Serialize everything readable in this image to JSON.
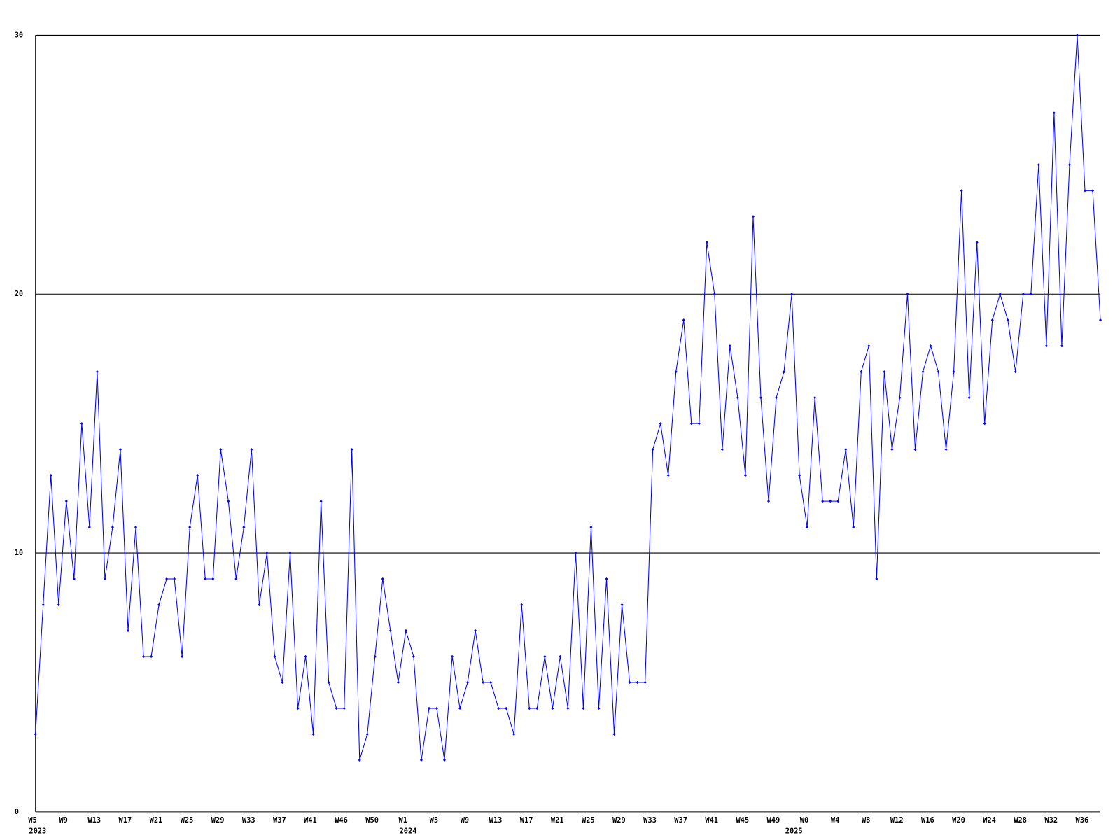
{
  "chart_data": {
    "type": "line",
    "categories": [
      "W5",
      null,
      null,
      null,
      "W9",
      null,
      null,
      null,
      "W13",
      null,
      null,
      null,
      "W17",
      null,
      null,
      null,
      "W21",
      null,
      null,
      null,
      "W25",
      null,
      null,
      null,
      "W29",
      null,
      null,
      null,
      "W33",
      null,
      null,
      null,
      "W37",
      null,
      null,
      null,
      "W41",
      null,
      null,
      null,
      "W46",
      null,
      null,
      null,
      "W50",
      null,
      null,
      null,
      "W1",
      null,
      null,
      null,
      "W5",
      null,
      null,
      null,
      "W9",
      null,
      null,
      null,
      "W13",
      null,
      null,
      null,
      "W17",
      null,
      null,
      null,
      "W21",
      null,
      null,
      null,
      "W25",
      null,
      null,
      null,
      "W29",
      null,
      null,
      null,
      "W33",
      null,
      null,
      null,
      "W37",
      null,
      null,
      null,
      "W41",
      null,
      null,
      null,
      "W45",
      null,
      null,
      null,
      "W49",
      null,
      null,
      null,
      "W0",
      null,
      null,
      null,
      "W4",
      null,
      null,
      null,
      "W8",
      null,
      null,
      null,
      "W12",
      null,
      null,
      null,
      "W16",
      null,
      null,
      null,
      "W20",
      null,
      null,
      null,
      "W24",
      null,
      null,
      null,
      "W28",
      null,
      null,
      null,
      "W32",
      null,
      null,
      null,
      "W36",
      null,
      null
    ],
    "years": [
      "2023",
      null,
      null,
      null,
      null,
      null,
      null,
      null,
      null,
      null,
      null,
      null,
      null,
      null,
      null,
      null,
      null,
      null,
      null,
      null,
      null,
      null,
      null,
      null,
      null,
      null,
      null,
      null,
      null,
      null,
      null,
      null,
      null,
      null,
      null,
      null,
      null,
      null,
      null,
      null,
      null,
      null,
      null,
      null,
      null,
      null,
      null,
      null,
      "2024",
      null,
      null,
      null,
      null,
      null,
      null,
      null,
      null,
      null,
      null,
      null,
      null,
      null,
      null,
      null,
      null,
      null,
      null,
      null,
      null,
      null,
      null,
      null,
      null,
      null,
      null,
      null,
      null,
      null,
      null,
      null,
      null,
      null,
      null,
      null,
      null,
      null,
      null,
      null,
      null,
      null,
      null,
      null,
      null,
      null,
      null,
      null,
      null,
      null,
      "2025",
      null,
      null,
      null,
      null,
      null,
      null,
      null,
      null,
      null,
      null,
      null,
      null,
      null,
      null,
      null,
      null,
      null,
      null,
      null,
      null,
      null,
      null,
      null,
      null,
      null,
      null,
      null,
      null,
      null,
      null,
      null,
      null,
      null,
      null,
      null,
      null,
      null,
      null
    ],
    "series": [
      {
        "color": "#0000ff",
        "values": [
          3,
          8,
          13,
          8,
          12,
          9,
          15,
          11,
          17,
          9,
          11,
          14,
          7,
          11,
          6,
          6,
          8,
          9,
          9,
          6,
          11,
          13,
          9,
          9,
          14,
          12,
          9,
          11,
          14,
          8,
          10,
          6,
          5,
          10,
          4,
          6,
          3,
          12,
          5,
          4,
          4,
          14,
          2,
          3,
          6,
          9,
          7,
          5,
          7,
          6,
          2,
          4,
          4,
          2,
          6,
          4,
          5,
          7,
          5,
          5,
          4,
          4,
          3,
          8,
          4,
          4,
          6,
          4,
          6,
          4,
          10,
          4,
          11,
          4,
          9,
          3,
          8,
          5,
          5,
          5,
          14,
          15,
          13,
          17,
          19,
          15,
          15,
          22,
          20,
          14,
          18,
          16,
          13,
          23,
          16,
          12,
          16,
          17,
          20,
          13,
          11,
          16,
          12,
          12,
          12,
          14,
          11,
          17,
          18,
          9,
          17,
          14,
          16,
          20,
          14,
          17,
          18,
          17,
          14,
          17,
          24,
          16,
          22,
          15,
          19,
          20,
          19,
          17,
          20,
          20,
          25,
          18,
          27,
          18,
          25,
          30,
          24,
          24,
          19
        ]
      }
    ],
    "ylim": [
      0,
      30
    ],
    "yticks": [
      0,
      10,
      20,
      30
    ],
    "grid": true
  }
}
